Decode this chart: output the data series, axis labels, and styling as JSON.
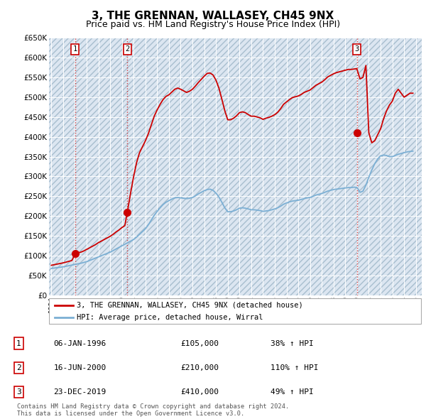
{
  "title": "3, THE GRENNAN, WALLASEY, CH45 9NX",
  "subtitle": "Price paid vs. HM Land Registry's House Price Index (HPI)",
  "ylim": [
    0,
    650000
  ],
  "yticks": [
    0,
    50000,
    100000,
    150000,
    200000,
    250000,
    300000,
    350000,
    400000,
    450000,
    500000,
    550000,
    600000,
    650000
  ],
  "xlim_start": 1993.8,
  "xlim_end": 2025.5,
  "background_color": "#ffffff",
  "plot_bg_color": "#dce6f1",
  "grid_color": "#ffffff",
  "sale_color": "#cc0000",
  "hpi_color": "#7bafd4",
  "sale_label": "3, THE GRENNAN, WALLASEY, CH45 9NX (detached house)",
  "hpi_label": "HPI: Average price, detached house, Wirral",
  "transactions": [
    {
      "num": 1,
      "date_str": "06-JAN-1996",
      "date_x": 1996.02,
      "price": 105000,
      "pct": "38%",
      "dir": "↑"
    },
    {
      "num": 2,
      "date_str": "16-JUN-2000",
      "date_x": 2000.46,
      "price": 210000,
      "pct": "110%",
      "dir": "↑"
    },
    {
      "num": 3,
      "date_str": "23-DEC-2019",
      "date_x": 2019.98,
      "price": 410000,
      "pct": "49%",
      "dir": "↑"
    }
  ],
  "footer": "Contains HM Land Registry data © Crown copyright and database right 2024.\nThis data is licensed under the Open Government Licence v3.0.",
  "hpi_data_x": [
    1994.0,
    1994.25,
    1994.5,
    1994.75,
    1995.0,
    1995.25,
    1995.5,
    1995.75,
    1996.0,
    1996.25,
    1996.5,
    1996.75,
    1997.0,
    1997.25,
    1997.5,
    1997.75,
    1998.0,
    1998.25,
    1998.5,
    1998.75,
    1999.0,
    1999.25,
    1999.5,
    1999.75,
    2000.0,
    2000.25,
    2000.5,
    2000.75,
    2001.0,
    2001.25,
    2001.5,
    2001.75,
    2002.0,
    2002.25,
    2002.5,
    2002.75,
    2003.0,
    2003.25,
    2003.5,
    2003.75,
    2004.0,
    2004.25,
    2004.5,
    2004.75,
    2005.0,
    2005.25,
    2005.5,
    2005.75,
    2006.0,
    2006.25,
    2006.5,
    2006.75,
    2007.0,
    2007.25,
    2007.5,
    2007.75,
    2008.0,
    2008.25,
    2008.5,
    2008.75,
    2009.0,
    2009.25,
    2009.5,
    2009.75,
    2010.0,
    2010.25,
    2010.5,
    2010.75,
    2011.0,
    2011.25,
    2011.5,
    2011.75,
    2012.0,
    2012.25,
    2012.5,
    2012.75,
    2013.0,
    2013.25,
    2013.5,
    2013.75,
    2014.0,
    2014.25,
    2014.5,
    2014.75,
    2015.0,
    2015.25,
    2015.5,
    2015.75,
    2016.0,
    2016.25,
    2016.5,
    2016.75,
    2017.0,
    2017.25,
    2017.5,
    2017.75,
    2018.0,
    2018.25,
    2018.5,
    2018.75,
    2019.0,
    2019.25,
    2019.5,
    2019.75,
    2020.0,
    2020.25,
    2020.5,
    2020.75,
    2021.0,
    2021.25,
    2021.5,
    2021.75,
    2022.0,
    2022.25,
    2022.5,
    2022.75,
    2023.0,
    2023.25,
    2023.5,
    2023.75,
    2024.0,
    2024.25,
    2024.5,
    2024.75
  ],
  "hpi_data_y": [
    68000,
    69000,
    70000,
    71000,
    72000,
    73500,
    75000,
    76500,
    78000,
    79500,
    81000,
    83000,
    85000,
    88000,
    91000,
    94000,
    97000,
    100000,
    103000,
    106000,
    109000,
    113000,
    117000,
    121000,
    125000,
    129000,
    133000,
    137000,
    141000,
    147000,
    154000,
    161000,
    168000,
    178000,
    190000,
    202000,
    212000,
    221000,
    229000,
    235000,
    239000,
    243000,
    246000,
    247000,
    246000,
    245000,
    244000,
    245000,
    247000,
    251000,
    256000,
    260000,
    264000,
    267000,
    268000,
    265000,
    258000,
    248000,
    235000,
    221000,
    211000,
    211000,
    213000,
    216000,
    220000,
    221000,
    220000,
    218000,
    216000,
    216000,
    215000,
    214000,
    212000,
    213000,
    214000,
    216000,
    218000,
    221000,
    225000,
    230000,
    233000,
    236000,
    238000,
    239000,
    240000,
    242000,
    244000,
    246000,
    247000,
    250000,
    253000,
    255000,
    257000,
    260000,
    263000,
    265000,
    267000,
    268000,
    269000,
    270000,
    271000,
    272000,
    272000,
    273000,
    272000,
    260000,
    263000,
    278000,
    298000,
    316000,
    332000,
    344000,
    352000,
    354000,
    353000,
    350000,
    350000,
    353000,
    356000,
    358000,
    360000,
    362000,
    363000,
    364000
  ],
  "red_line_x": [
    1994.0,
    1994.25,
    1994.5,
    1994.75,
    1995.0,
    1995.25,
    1995.5,
    1995.75,
    1996.02,
    1996.25,
    1996.5,
    1996.75,
    1997.0,
    1997.25,
    1997.5,
    1997.75,
    1998.0,
    1998.25,
    1998.5,
    1998.75,
    1999.0,
    1999.25,
    1999.5,
    1999.75,
    2000.0,
    2000.25,
    2000.46,
    2000.75,
    2001.0,
    2001.25,
    2001.5,
    2001.75,
    2002.0,
    2002.25,
    2002.5,
    2002.75,
    2003.0,
    2003.25,
    2003.5,
    2003.75,
    2004.0,
    2004.25,
    2004.5,
    2004.75,
    2005.0,
    2005.25,
    2005.5,
    2005.75,
    2006.0,
    2006.25,
    2006.5,
    2006.75,
    2007.0,
    2007.25,
    2007.5,
    2007.75,
    2008.0,
    2008.25,
    2008.5,
    2008.75,
    2009.0,
    2009.25,
    2009.5,
    2009.75,
    2010.0,
    2010.25,
    2010.5,
    2010.75,
    2011.0,
    2011.25,
    2011.5,
    2011.75,
    2012.0,
    2012.25,
    2012.5,
    2012.75,
    2013.0,
    2013.25,
    2013.5,
    2013.75,
    2014.0,
    2014.25,
    2014.5,
    2014.75,
    2015.0,
    2015.25,
    2015.5,
    2015.75,
    2016.0,
    2016.25,
    2016.5,
    2016.75,
    2017.0,
    2017.25,
    2017.5,
    2017.75,
    2018.0,
    2018.25,
    2018.5,
    2018.75,
    2019.0,
    2019.25,
    2019.5,
    2019.98,
    2020.0,
    2020.25,
    2020.5,
    2020.75,
    2021.0,
    2021.25,
    2021.5,
    2021.75,
    2022.0,
    2022.25,
    2022.5,
    2022.75,
    2023.0,
    2023.25,
    2023.5,
    2023.75,
    2024.0,
    2024.25,
    2024.5,
    2024.75
  ],
  "red_line_y": [
    76000,
    77500,
    79000,
    80500,
    82000,
    84000,
    86000,
    88000,
    105000,
    107000,
    109000,
    112000,
    116000,
    120000,
    124000,
    128000,
    133000,
    137000,
    141000,
    145000,
    149000,
    154000,
    160000,
    165000,
    171000,
    176000,
    210000,
    260000,
    300000,
    335000,
    360000,
    375000,
    390000,
    408000,
    430000,
    452000,
    468000,
    482000,
    494000,
    502000,
    506000,
    513000,
    520000,
    523000,
    520000,
    516000,
    512000,
    515000,
    520000,
    528000,
    537000,
    545000,
    553000,
    560000,
    561000,
    556000,
    543000,
    523000,
    495000,
    466000,
    443000,
    443000,
    447000,
    453000,
    461000,
    463000,
    461000,
    456000,
    452000,
    452000,
    450000,
    448000,
    444000,
    447000,
    449000,
    452000,
    456000,
    462000,
    471000,
    482000,
    488000,
    494000,
    499000,
    501000,
    503000,
    507000,
    512000,
    515000,
    518000,
    524000,
    530000,
    534000,
    538000,
    544000,
    551000,
    555000,
    559000,
    562000,
    564000,
    566000,
    568000,
    570000,
    570000,
    572000,
    570000,
    546000,
    550000,
    580000,
    410000,
    385000,
    390000,
    405000,
    420000,
    445000,
    465000,
    480000,
    490000,
    510000,
    520000,
    510000,
    500000,
    505000,
    510000,
    510000
  ]
}
